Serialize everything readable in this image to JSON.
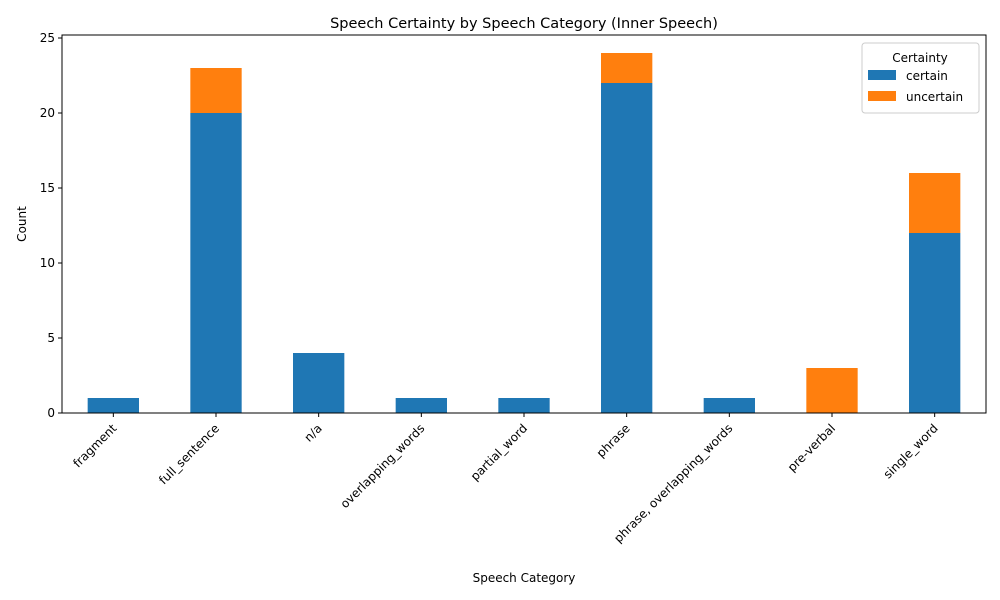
{
  "chart_data": {
    "type": "bar",
    "stacked": true,
    "title": "Speech Certainty by Speech Category (Inner Speech)",
    "xlabel": "Speech Category",
    "ylabel": "Count",
    "categories": [
      "fragment",
      "full_sentence",
      "n/a",
      "overlapping_words",
      "partial_word",
      "phrase",
      "phrase, overlapping_words",
      "pre-verbal",
      "single_word"
    ],
    "series": [
      {
        "name": "certain",
        "color": "#1f77b4",
        "values": [
          1,
          20,
          4,
          1,
          1,
          22,
          1,
          0,
          12
        ]
      },
      {
        "name": "uncertain",
        "color": "#ff7f0e",
        "values": [
          0,
          3,
          0,
          0,
          0,
          2,
          0,
          3,
          4
        ]
      }
    ],
    "ylim": [
      0,
      25.2
    ],
    "yticks": [
      0,
      5,
      10,
      15,
      20,
      25
    ],
    "grid": false,
    "legend": {
      "title": "Certainty",
      "position": "top-right"
    }
  }
}
